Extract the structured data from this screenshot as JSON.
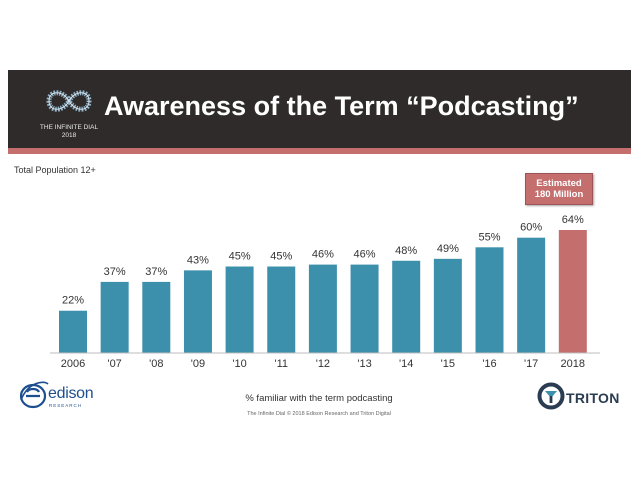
{
  "header": {
    "title": "Awareness of the Term “Podcasting”",
    "logo_line1": "THE INFINITE DIAL",
    "logo_line2": "2018"
  },
  "subtitle": "Total Population 12+",
  "callout": {
    "line1": "Estimated",
    "line2": "180 Million"
  },
  "x_note": "% familiar with the term podcasting",
  "footer": "The Infinite Dial   © 2018 Edison Research and Triton Digital",
  "brands": {
    "edison": "edison",
    "edison_sub": "RESEARCH",
    "triton": "TRITON"
  },
  "colors": {
    "bar": "#3d90ac",
    "highlight": "#c46e6e",
    "header_bg": "#302b2b",
    "accent_line": "#c46e6e"
  },
  "chart_data": {
    "type": "bar",
    "categories": [
      "2006",
      "'07",
      "'08",
      "'09",
      "'10",
      "'11",
      "'12",
      "'13",
      "'14",
      "'15",
      "'16",
      "'17",
      "2018"
    ],
    "values": [
      22,
      37,
      37,
      43,
      45,
      45,
      46,
      46,
      48,
      49,
      55,
      60,
      64
    ],
    "value_labels": [
      "22%",
      "37%",
      "37%",
      "43%",
      "45%",
      "45%",
      "46%",
      "46%",
      "48%",
      "49%",
      "55%",
      "60%",
      "64%"
    ],
    "highlight_index": 12,
    "ylim": [
      0,
      100
    ],
    "grid": false
  }
}
